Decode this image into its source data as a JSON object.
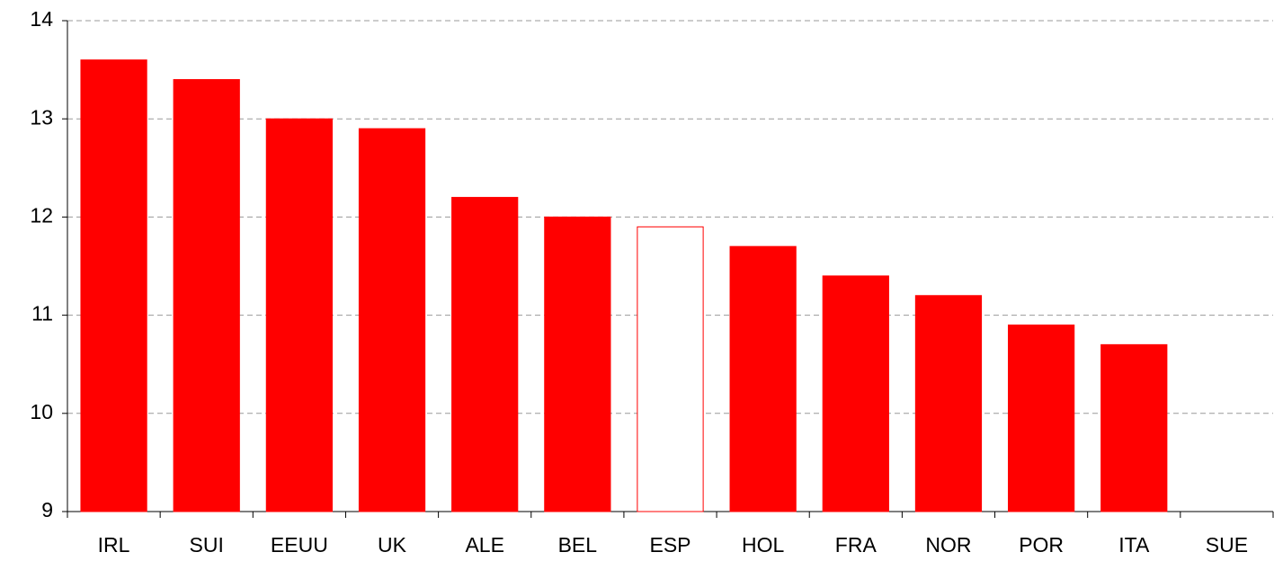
{
  "chart_data": {
    "type": "bar",
    "categories": [
      "IRL",
      "SUI",
      "EEUU",
      "UK",
      "ALE",
      "BEL",
      "ESP",
      "HOL",
      "FRA",
      "NOR",
      "POR",
      "ITA",
      "SUE"
    ],
    "values": [
      13.6,
      13.4,
      13.0,
      12.9,
      12.2,
      12.0,
      11.9,
      11.7,
      11.4,
      11.2,
      10.9,
      10.7,
      null
    ],
    "colors": [
      "#ff0000",
      "#ff0000",
      "#ff0000",
      "#ff0000",
      "#ff0000",
      "#ff0000",
      "#ffffff",
      "#ff0000",
      "#ff0000",
      "#ff0000",
      "#ff0000",
      "#ff0000",
      "#ff0000"
    ],
    "edgecolor": "#ff0000",
    "ylim": [
      9,
      14
    ],
    "yticks": [
      9,
      10,
      11,
      12,
      13,
      14
    ],
    "grid": true
  }
}
